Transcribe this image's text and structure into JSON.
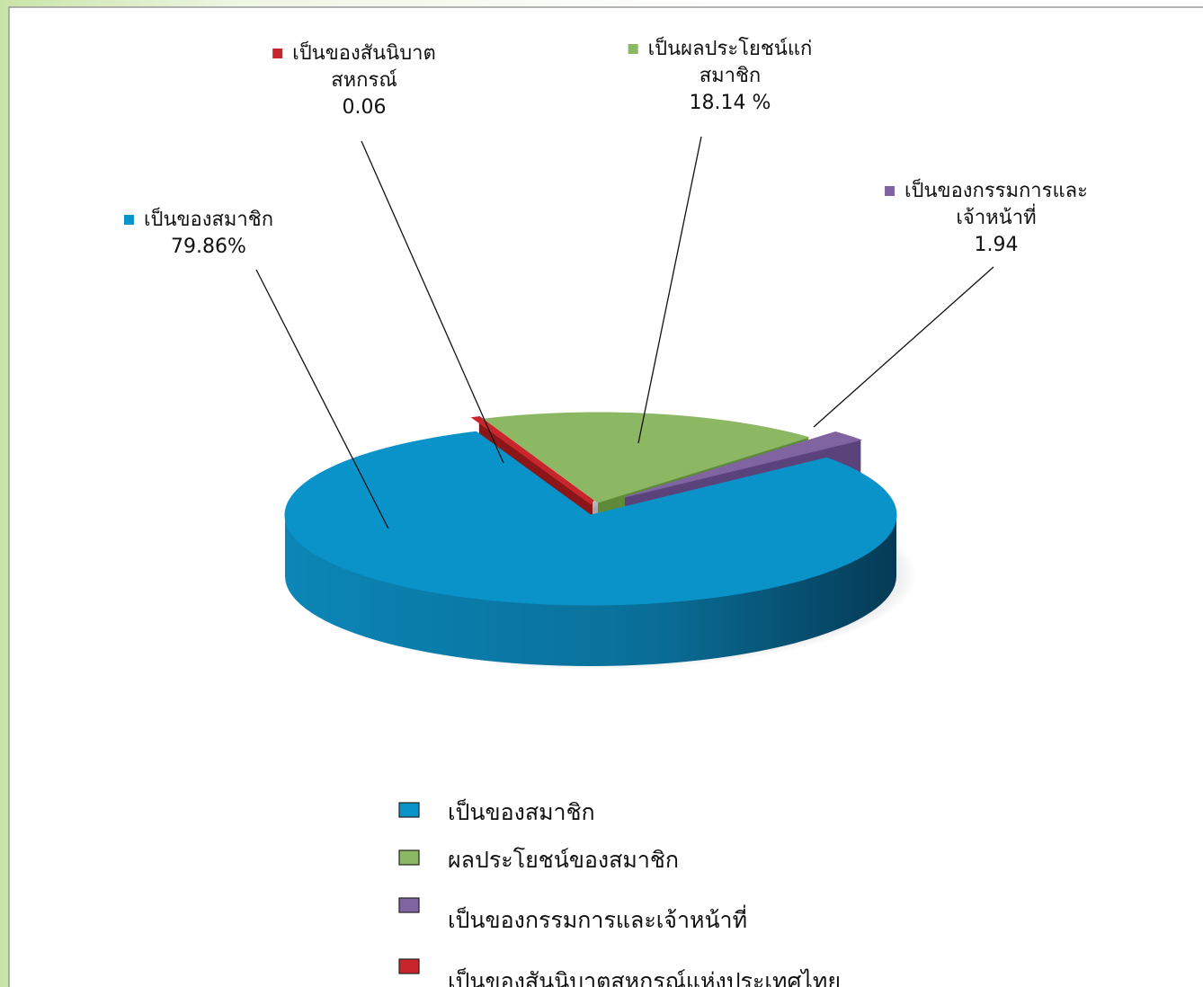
{
  "chart_data": {
    "type": "pie",
    "categories": [
      "เป็นของสมาชิก",
      "ผลประโยชน์ของสมาชิก",
      "เป็นของกรรมการและเจ้าหน้าที่",
      "เป็นของสันนิบาตสหกรณ์แห่งประเทศไทย"
    ],
    "values": [
      79.86,
      18.14,
      1.94,
      0.06
    ],
    "value_labels": [
      "79.86%",
      "18.14 %",
      "1.94",
      "0.06"
    ],
    "label_lines": [
      [
        "เป็นของสมาชิก"
      ],
      [
        "เป็นผลประโยชน์แก่",
        "สมาชิก"
      ],
      [
        "เป็นของกรรมการและ",
        "เจ้าหน้าที่"
      ],
      [
        "เป็นของสันนิบาต",
        "สหกรณ์"
      ]
    ],
    "colors": [
      "#0a93c8",
      "#8cb763",
      "#8064a2",
      "#c8262c"
    ]
  }
}
